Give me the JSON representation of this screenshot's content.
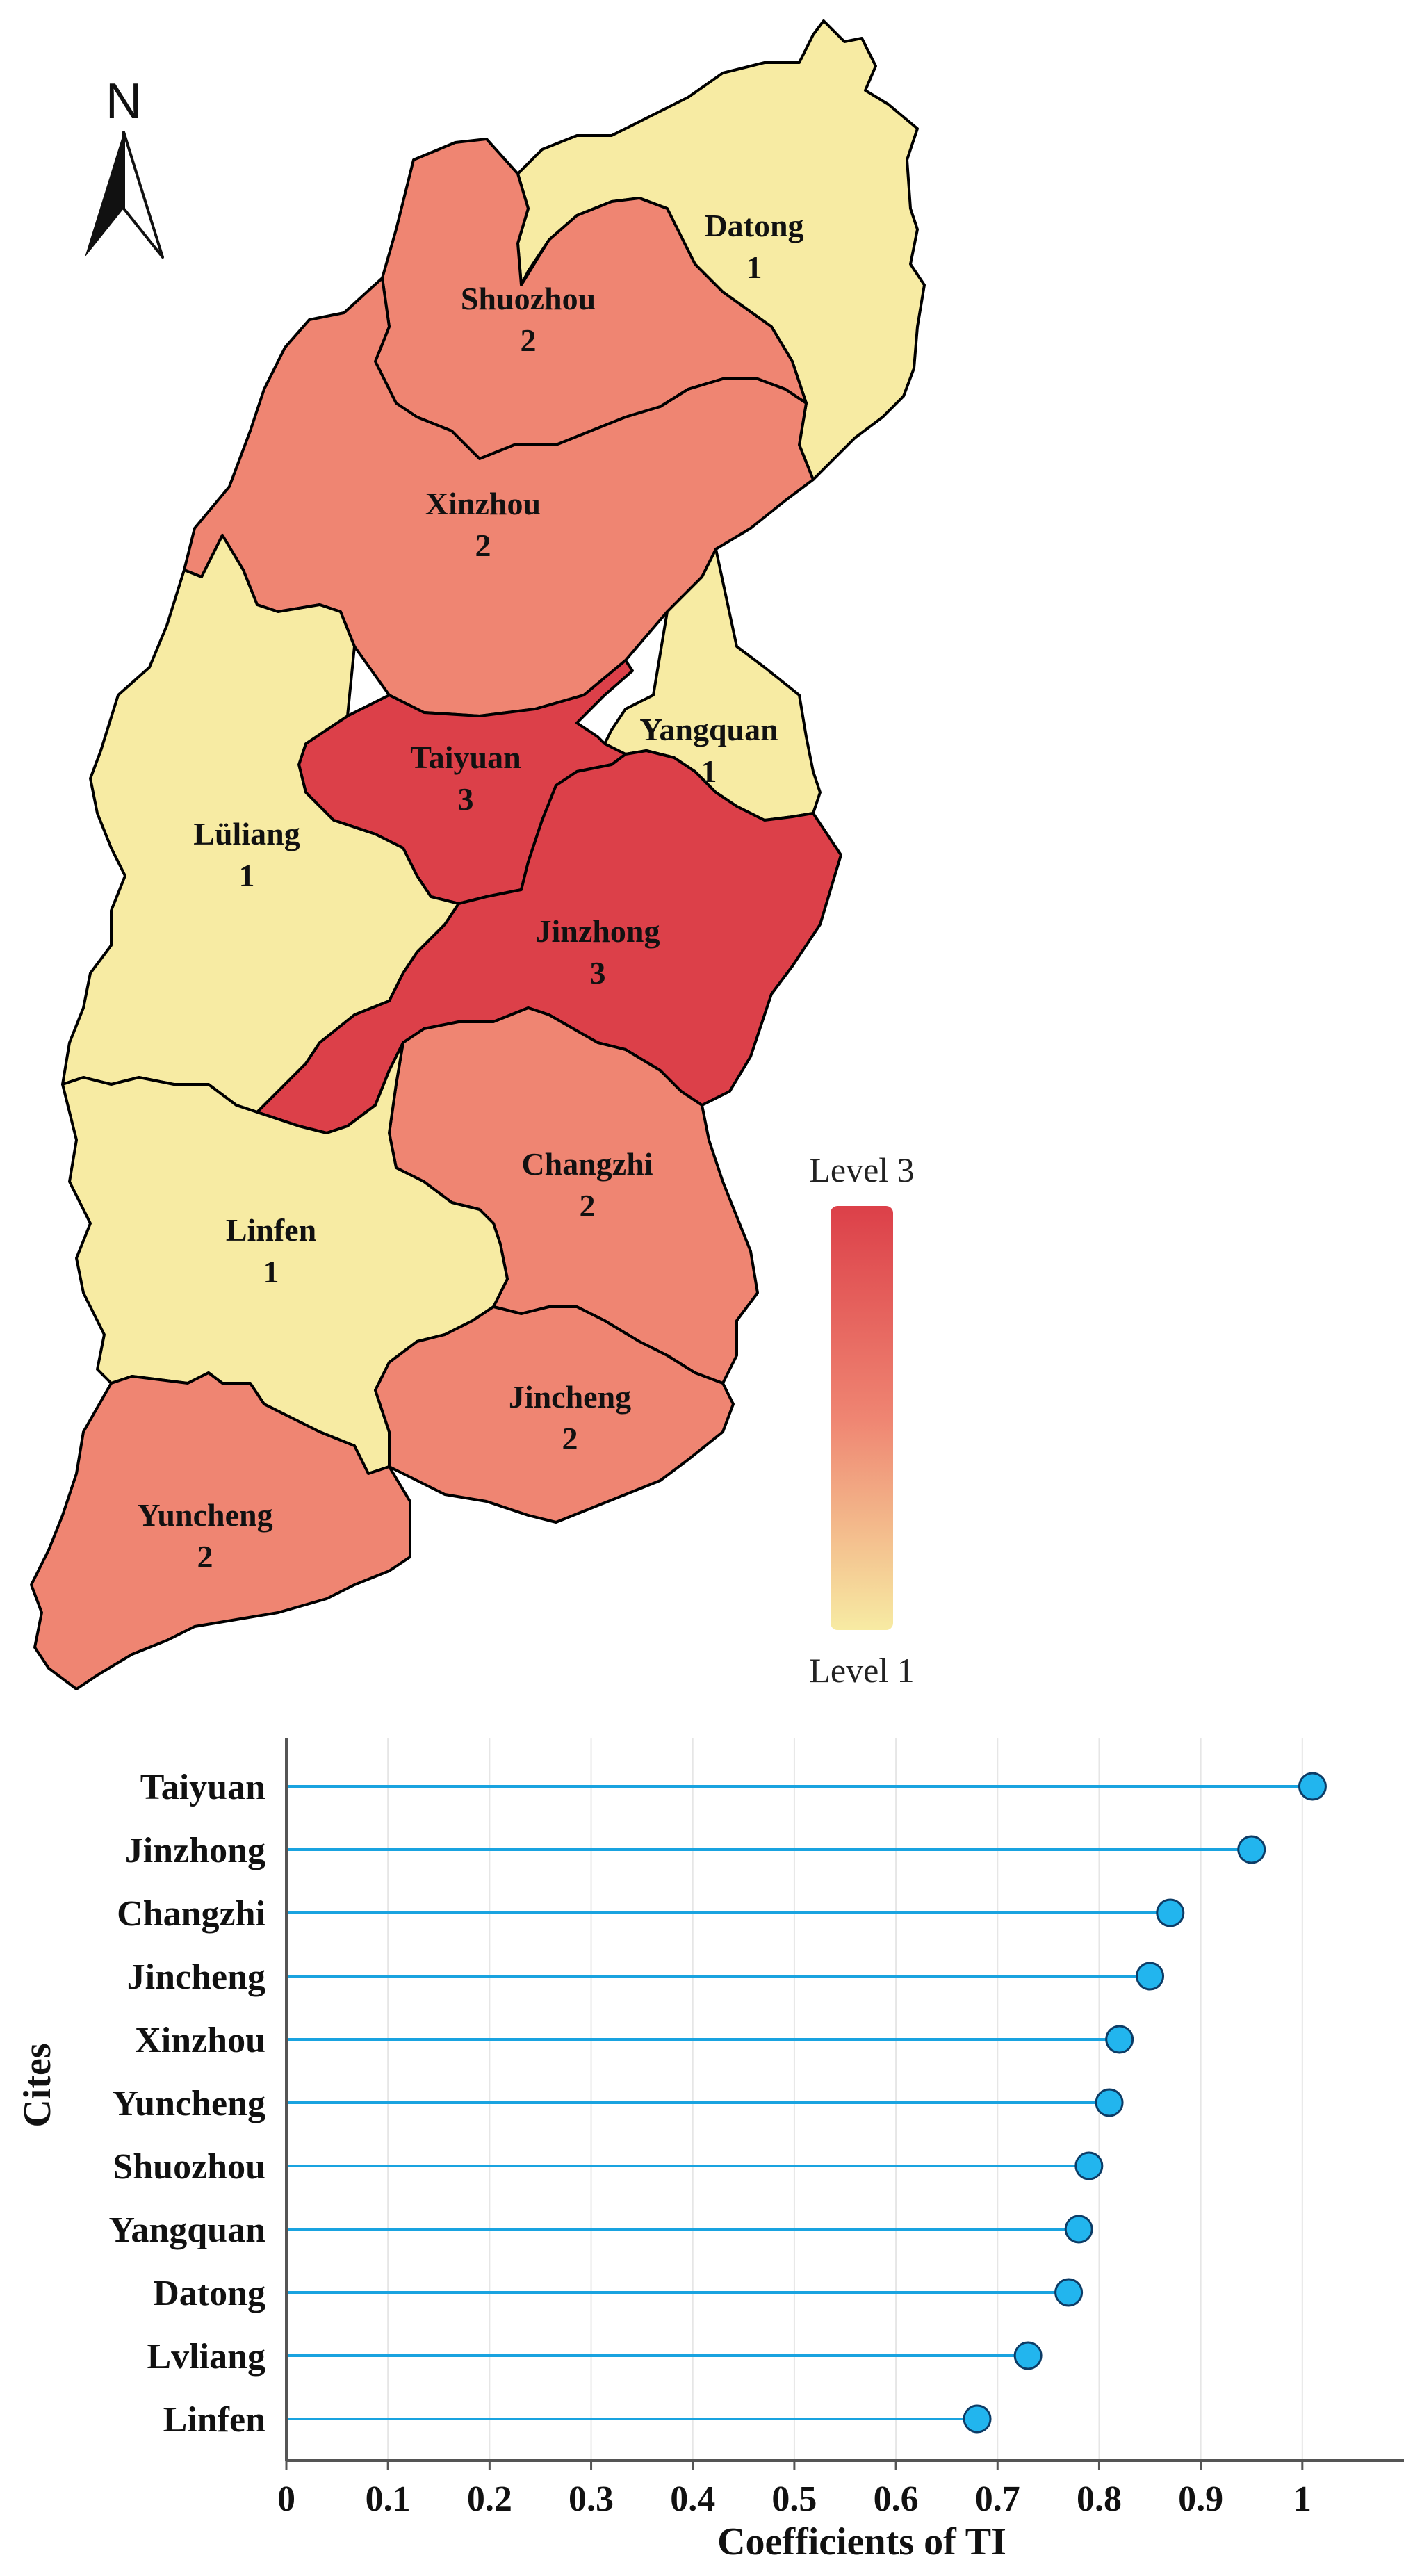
{
  "map": {
    "north_arrow": {
      "label": "N",
      "icon": "north-arrow-icon"
    },
    "colors": {
      "level1": "#f7eba3",
      "level2": "#ef8572",
      "level3": "#dc4049"
    },
    "regions": [
      {
        "key": "datong",
        "name": "Datong",
        "level": 1
      },
      {
        "key": "shuozhou",
        "name": "Shuozhou",
        "level": 2
      },
      {
        "key": "xinzhou",
        "name": "Xinzhou",
        "level": 2
      },
      {
        "key": "yangquan",
        "name": "Yangquan",
        "level": 1
      },
      {
        "key": "taiyuan",
        "name": "Taiyuan",
        "level": 3
      },
      {
        "key": "luliang",
        "name": "Lüliang",
        "level": 1
      },
      {
        "key": "jinzhong",
        "name": "Jinzhong",
        "level": 3
      },
      {
        "key": "changzhi",
        "name": "Changzhi",
        "level": 2
      },
      {
        "key": "linfen",
        "name": "Linfen",
        "level": 1
      },
      {
        "key": "jincheng",
        "name": "Jincheng",
        "level": 2
      },
      {
        "key": "yuncheng",
        "name": "Yuncheng",
        "level": 2
      }
    ],
    "legend": {
      "top_label": "Level 3",
      "bottom_label": "Level 1"
    }
  },
  "chart_data": {
    "type": "lollipop",
    "orientation": "horizontal",
    "categories": [
      "Taiyuan",
      "Jinzhong",
      "Changzhi",
      "Jincheng",
      "Xinzhou",
      "Yuncheng",
      "Shuozhou",
      "Yangquan",
      "Datong",
      "Lvliang",
      "Linfen"
    ],
    "values": [
      1.01,
      0.95,
      0.87,
      0.85,
      0.82,
      0.81,
      0.79,
      0.78,
      0.77,
      0.73,
      0.68
    ],
    "xlabel": "Coefficients of TI",
    "ylabel": "Cites",
    "xlim": [
      0,
      1.1
    ],
    "xticks": [
      0,
      0.1,
      0.2,
      0.3,
      0.4,
      0.5,
      0.6,
      0.7,
      0.8,
      0.9,
      1
    ],
    "grid": "vertical",
    "colors": {
      "stem": "#19a3e0",
      "marker": "#22b5ee",
      "marker_edge": "#0d3c66"
    }
  }
}
